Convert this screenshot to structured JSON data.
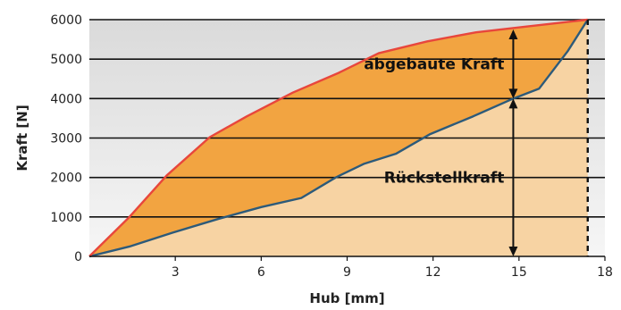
{
  "chart_data": {
    "type": "area",
    "xlabel": "Hub [mm]",
    "ylabel": "Kraft [N]",
    "xlim": [
      0,
      18
    ],
    "ylim": [
      0,
      6000
    ],
    "x_ticks": [
      "3",
      "6",
      "9",
      "12",
      "15",
      "18"
    ],
    "y_ticks": [
      "0",
      "1000",
      "2000",
      "3000",
      "4000",
      "5000",
      "6000"
    ],
    "grid": "horizontal",
    "series": [
      {
        "color": "#e8463c",
        "x": [
          0,
          1.4,
          2.7,
          4.2,
          5.5,
          7.1,
          8.7,
          10.1,
          11.8,
          13.5,
          15.2,
          17.4
        ],
        "y": [
          0,
          1000,
          2050,
          3020,
          3550,
          4150,
          4650,
          5150,
          5450,
          5680,
          5820,
          6000
        ]
      },
      {
        "color": "#2c5a7a",
        "x": [
          0,
          1.4,
          2.9,
          4.5,
          6.0,
          7.4,
          8.6,
          9.6,
          10.7,
          11.9,
          13.4,
          14.8,
          15.7,
          16.7,
          17.4
        ],
        "y": [
          0,
          250,
          600,
          950,
          1250,
          1480,
          2000,
          2350,
          2600,
          3100,
          3550,
          4000,
          4250,
          5200,
          6000
        ]
      }
    ],
    "annotations": [
      {
        "text": "abgebaute Kraft",
        "x": 14.8,
        "y_from": 4000,
        "y_to": 5750
      },
      {
        "text": "Rückstellkraft",
        "x": 14.8,
        "y_from": 0,
        "y_to": 4000
      }
    ],
    "vline_dashed_x": 17.4,
    "colors": {
      "upper_area": "#f2a441",
      "lower_area": "#f7d3a3",
      "plot_bg_top": "#dadada",
      "plot_bg_bottom": "#f6f6f6"
    }
  }
}
